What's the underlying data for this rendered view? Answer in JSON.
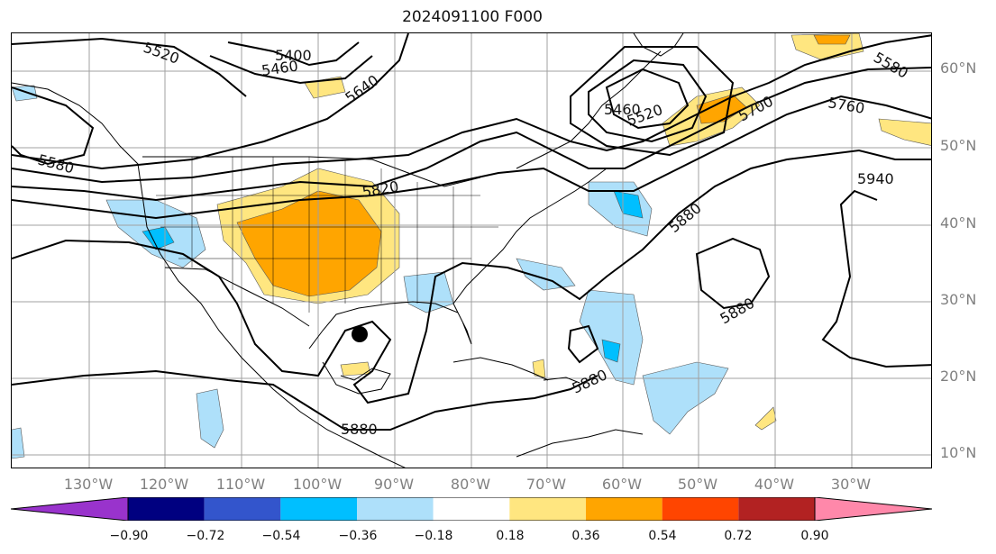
{
  "title": "2024091100 F000",
  "map": {
    "lat_labels": [
      "60°N",
      "50°N",
      "40°N",
      "30°N",
      "20°N",
      "10°N"
    ],
    "lon_labels": [
      "130°W",
      "120°W",
      "110°W",
      "100°W",
      "90°W",
      "80°W",
      "70°W",
      "60°W",
      "50°W",
      "40°W",
      "30°W"
    ],
    "contour_labels": [
      "5520",
      "5400",
      "5460",
      "5640",
      "5460",
      "5520",
      "5580",
      "5700",
      "5760",
      "5580",
      "5820",
      "5880",
      "5940",
      "5880",
      "5880",
      "5880"
    ],
    "storm_marker": "tropical-storm-marker"
  },
  "colorbar": {
    "colors": [
      "#9933cc",
      "#000080",
      "#3355cc",
      "#00bfff",
      "#aee0fa",
      "#ffffff",
      "#ffe680",
      "#ffa500",
      "#ff4500",
      "#b22222",
      "#ff88aa"
    ],
    "tick_labels": [
      "−0.90",
      "−0.72",
      "−0.54",
      "−0.36",
      "−0.18",
      "0.18",
      "0.36",
      "0.54",
      "0.72",
      "0.90"
    ]
  }
}
